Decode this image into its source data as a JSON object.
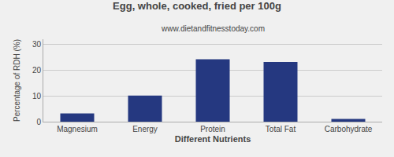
{
  "chart_data": {
    "type": "bar",
    "title": "Egg, whole, cooked, fried per 100g",
    "subtitle": "www.dietandfitnesstoday.com",
    "xlabel": "Different Nutrients",
    "ylabel": "Percentage of RDH (%)",
    "categories": [
      "Magnesium",
      "Energy",
      "Protein",
      "Total Fat",
      "Carbohydrate"
    ],
    "values": [
      3.2,
      10.1,
      24.2,
      23.2,
      1.1
    ],
    "color": "#253880",
    "ylim": [
      0,
      32
    ],
    "yticks": [
      0,
      10,
      20,
      30
    ],
    "grid": true
  }
}
